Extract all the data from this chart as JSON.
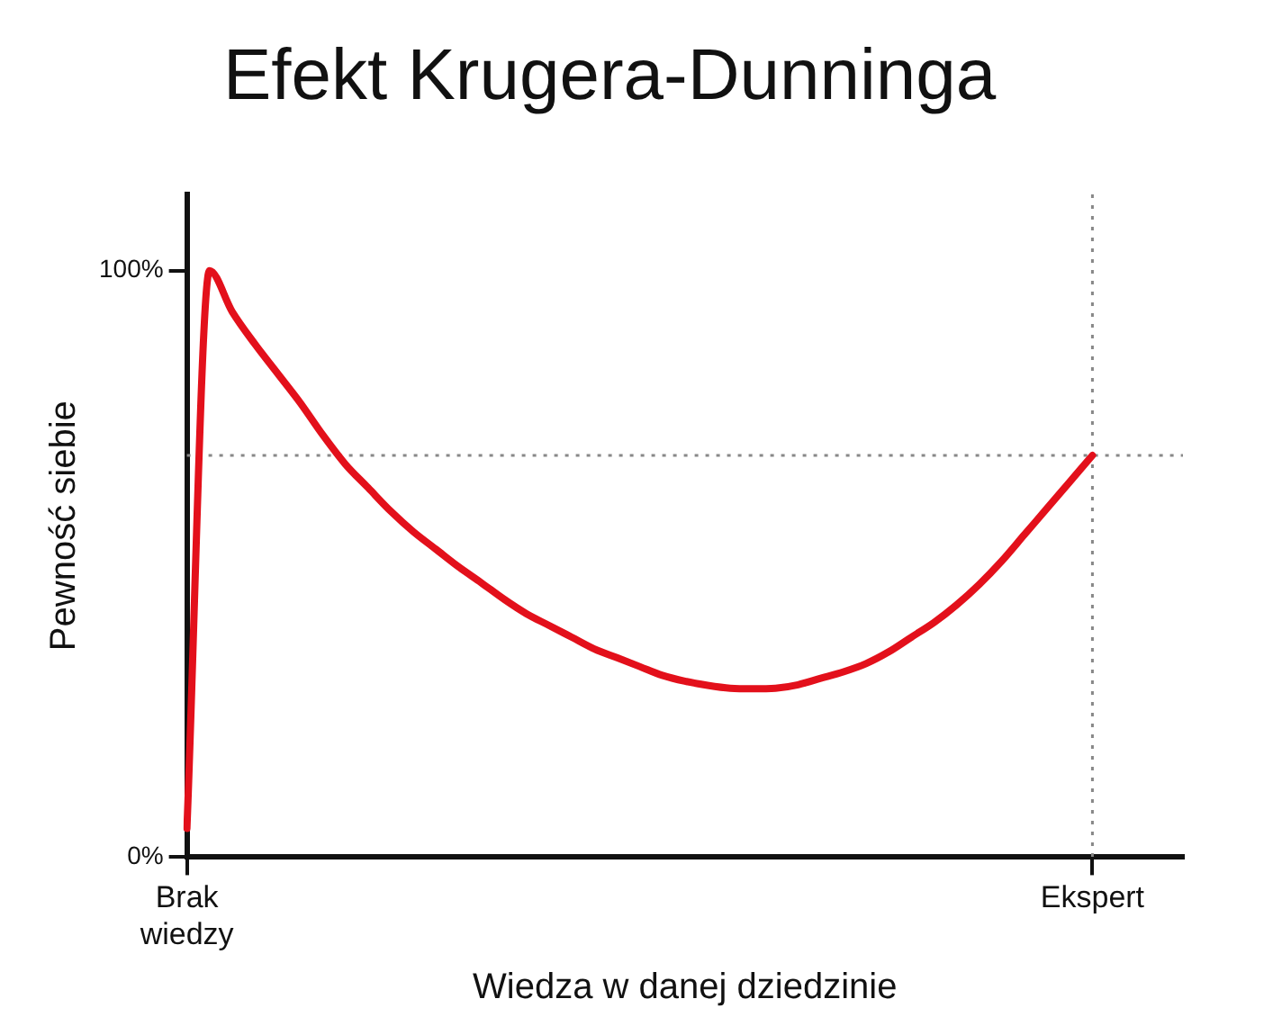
{
  "chart_data": {
    "type": "line",
    "title": "Efekt Krugera-Dunninga",
    "xlabel": "Wiedza w danej dziedzinie",
    "ylabel": "Pewność siebie",
    "categories": [
      "Brak wiedzy",
      null,
      null,
      null,
      null,
      null,
      null,
      null,
      null,
      null,
      null,
      null,
      null,
      null,
      null,
      null,
      null,
      null,
      null,
      null,
      null,
      null,
      null,
      null,
      null,
      null,
      null,
      null,
      null,
      null,
      null,
      null,
      null,
      null,
      null,
      null,
      null,
      null,
      null,
      null,
      "Ekspert",
      null,
      null,
      null,
      null
    ],
    "series": [
      {
        "color": "#e3101b",
        "values": [
          4.9,
          100,
          93,
          87.5,
          82.5,
          77.5,
          72,
          67,
          63,
          59,
          55.5,
          52.5,
          49.5,
          46.8,
          44,
          41.5,
          39.5,
          37.5,
          35.5,
          34,
          32.5,
          31,
          30,
          29.3,
          28.8,
          28.7,
          28.8,
          29.4,
          30.5,
          31.6,
          33,
          35,
          37.5,
          40,
          43,
          46.5,
          50.5,
          55,
          59.5,
          64,
          68.5,
          null,
          null,
          null,
          null
        ]
      }
    ],
    "ylim": [
      0,
      113
    ],
    "yticks": [
      {
        "value": 0,
        "label": "0%"
      },
      {
        "value": 100,
        "label": "100%"
      }
    ],
    "ref_lines": [
      {
        "axis": "y",
        "value": 68.5,
        "color": "#888888",
        "line_style": "dotted"
      },
      {
        "axis": "x",
        "value": "Ekspert",
        "color": "#888888",
        "line_style": "dotted"
      }
    ],
    "grid": false,
    "legend": false,
    "marker": "none",
    "line_style": "solid"
  }
}
